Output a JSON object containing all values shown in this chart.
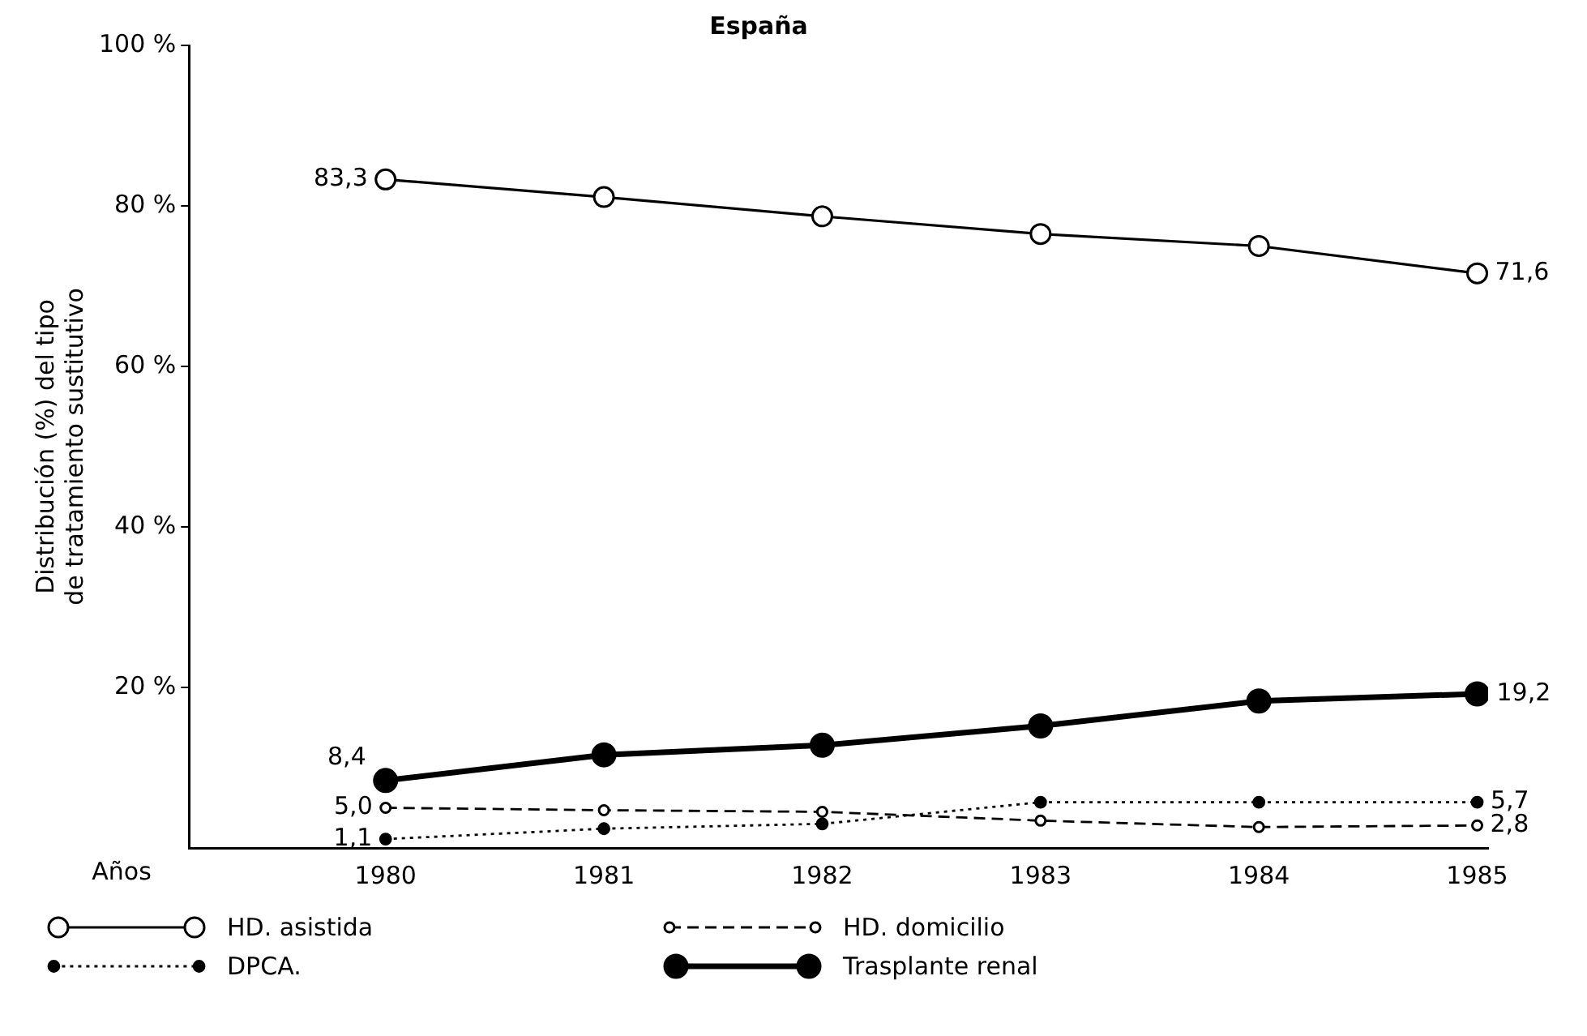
{
  "chart_data": {
    "type": "line",
    "title": "España",
    "xlabel": "Años",
    "ylabel": "Distribución (%) del tipo de tratamiento sustitutivo",
    "x": [
      1980,
      1981,
      1982,
      1983,
      1984,
      1985
    ],
    "xlim": [
      1979.1,
      1985.05
    ],
    "xticks": [
      1980,
      1981,
      1982,
      1983,
      1984,
      1985
    ],
    "ylim": [
      0,
      100
    ],
    "yticks": [
      {
        "value": 20,
        "label": "20 %"
      },
      {
        "value": 40,
        "label": "40 %"
      },
      {
        "value": 60,
        "label": "60 %"
      },
      {
        "value": 80,
        "label": "80 %"
      },
      {
        "value": 100,
        "label": "100 %"
      }
    ],
    "grid": false,
    "legend": "bottom",
    "marker": "circle",
    "series": [
      {
        "name": "HD. asistida",
        "color": "#000000",
        "line_style": "solid",
        "values": [
          83.3,
          81.1,
          78.7,
          76.5,
          75.0,
          71.6
        ],
        "value_labels": [
          "83,3",
          null,
          null,
          null,
          null,
          "71,6"
        ]
      },
      {
        "name": "HD. domicilio",
        "color": "#000000",
        "line_style": "dashed",
        "values": [
          5.0,
          4.7,
          4.5,
          3.4,
          2.6,
          2.8
        ],
        "value_labels": [
          "5,0",
          null,
          null,
          null,
          null,
          "2,8"
        ]
      },
      {
        "name": "DPCA.",
        "color": "#000000",
        "line_style": "dotted",
        "values": [
          1.1,
          2.4,
          3.0,
          5.7,
          5.7,
          5.7
        ],
        "value_labels": [
          "1,1",
          null,
          null,
          null,
          null,
          "5,7"
        ]
      },
      {
        "name": "Trasplante renal",
        "color": "#000000",
        "line_style": "solid",
        "values": [
          8.4,
          11.6,
          12.8,
          15.2,
          18.3,
          19.2
        ],
        "value_labels": [
          "8,4",
          null,
          null,
          null,
          null,
          "19,2"
        ]
      }
    ]
  }
}
